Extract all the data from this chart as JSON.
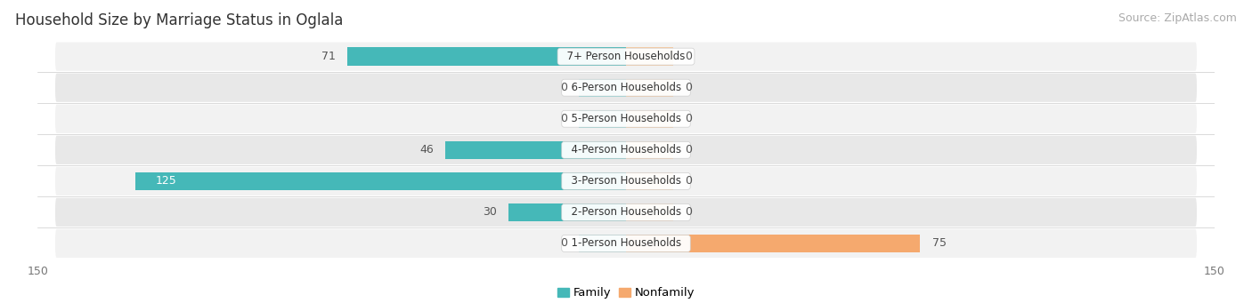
{
  "title": "Household Size by Marriage Status in Oglala",
  "source": "Source: ZipAtlas.com",
  "categories": [
    "7+ Person Households",
    "6-Person Households",
    "5-Person Households",
    "4-Person Households",
    "3-Person Households",
    "2-Person Households",
    "1-Person Households"
  ],
  "family_values": [
    71,
    0,
    0,
    46,
    125,
    30,
    0
  ],
  "nonfamily_values": [
    0,
    0,
    0,
    0,
    0,
    0,
    75
  ],
  "family_color": "#45b8b8",
  "family_color_light": "#85d4d4",
  "nonfamily_color": "#f5a96e",
  "nonfamily_color_light": "#f9cba0",
  "row_bg_color_odd": "#f2f2f2",
  "row_bg_color_even": "#e8e8e8",
  "xlim": 150,
  "bar_height": 0.58,
  "stub_value": 12,
  "label_color_white": "#ffffff",
  "label_color_dark": "#555555",
  "title_fontsize": 12,
  "source_fontsize": 9,
  "tick_fontsize": 9,
  "value_fontsize": 9,
  "category_fontsize": 8.5
}
